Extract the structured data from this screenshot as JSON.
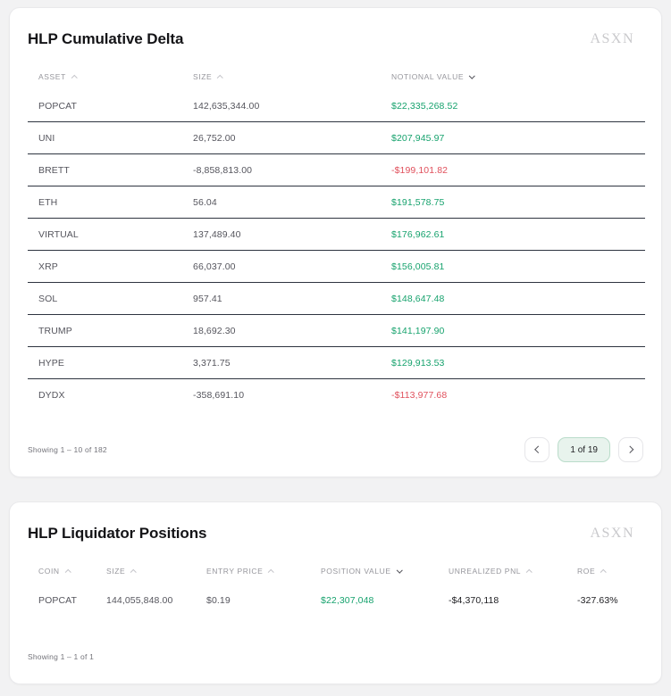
{
  "colors": {
    "positive": "#16a26d",
    "negative": "#e0505c",
    "row_divider": "#2e3440",
    "page_pill_bg": "#e8f3ed",
    "page_pill_border": "#badcca"
  },
  "cards": [
    {
      "title": "HLP Cumulative Delta",
      "logo": "ASXN",
      "columns": [
        {
          "label": "ASSET",
          "sort_dir": "up",
          "sort_active": false
        },
        {
          "label": "SIZE",
          "sort_dir": "up",
          "sort_active": false
        },
        {
          "label": "NOTIONAL VALUE",
          "sort_dir": "down",
          "sort_active": true
        }
      ],
      "rows": [
        {
          "cells": [
            {
              "text": "POPCAT",
              "tone": "muted"
            },
            {
              "text": "142,635,344.00",
              "tone": "muted"
            },
            {
              "text": "$22,335,268.52",
              "tone": "pos"
            }
          ]
        },
        {
          "cells": [
            {
              "text": "UNI",
              "tone": "muted"
            },
            {
              "text": "26,752.00",
              "tone": "muted"
            },
            {
              "text": "$207,945.97",
              "tone": "pos"
            }
          ]
        },
        {
          "cells": [
            {
              "text": "BRETT",
              "tone": "muted"
            },
            {
              "text": "-8,858,813.00",
              "tone": "muted"
            },
            {
              "text": "-$199,101.82",
              "tone": "neg"
            }
          ]
        },
        {
          "cells": [
            {
              "text": "ETH",
              "tone": "muted"
            },
            {
              "text": "56.04",
              "tone": "muted"
            },
            {
              "text": "$191,578.75",
              "tone": "pos"
            }
          ]
        },
        {
          "cells": [
            {
              "text": "VIRTUAL",
              "tone": "muted"
            },
            {
              "text": "137,489.40",
              "tone": "muted"
            },
            {
              "text": "$176,962.61",
              "tone": "pos"
            }
          ]
        },
        {
          "cells": [
            {
              "text": "XRP",
              "tone": "muted"
            },
            {
              "text": "66,037.00",
              "tone": "muted"
            },
            {
              "text": "$156,005.81",
              "tone": "pos"
            }
          ]
        },
        {
          "cells": [
            {
              "text": "SOL",
              "tone": "muted"
            },
            {
              "text": "957.41",
              "tone": "muted"
            },
            {
              "text": "$148,647.48",
              "tone": "pos"
            }
          ]
        },
        {
          "cells": [
            {
              "text": "TRUMP",
              "tone": "muted"
            },
            {
              "text": "18,692.30",
              "tone": "muted"
            },
            {
              "text": "$141,197.90",
              "tone": "pos"
            }
          ]
        },
        {
          "cells": [
            {
              "text": "HYPE",
              "tone": "muted"
            },
            {
              "text": "3,371.75",
              "tone": "muted"
            },
            {
              "text": "$129,913.53",
              "tone": "pos"
            }
          ]
        },
        {
          "cells": [
            {
              "text": "DYDX",
              "tone": "muted"
            },
            {
              "text": "-358,691.10",
              "tone": "muted"
            },
            {
              "text": "-$113,977.68",
              "tone": "neg"
            }
          ]
        }
      ],
      "footer": {
        "showing": "Showing 1 – 10 of 182",
        "page": "1 of 19"
      }
    },
    {
      "title": "HLP Liquidator Positions",
      "logo": "ASXN",
      "columns": [
        {
          "label": "COIN",
          "sort_dir": "up",
          "sort_active": false
        },
        {
          "label": "SIZE",
          "sort_dir": "up",
          "sort_active": false
        },
        {
          "label": "ENTRY PRICE",
          "sort_dir": "up",
          "sort_active": false
        },
        {
          "label": "POSITION VALUE",
          "sort_dir": "down",
          "sort_active": true
        },
        {
          "label": "UNREALIZED PNL",
          "sort_dir": "up",
          "sort_active": false
        },
        {
          "label": "ROE",
          "sort_dir": "up",
          "sort_active": false
        }
      ],
      "rows": [
        {
          "cells": [
            {
              "text": "POPCAT",
              "tone": "muted"
            },
            {
              "text": "144,055,848.00",
              "tone": "muted"
            },
            {
              "text": "$0.19",
              "tone": "muted"
            },
            {
              "text": "$22,307,048",
              "tone": "pos"
            },
            {
              "text": "-$4,370,118",
              "tone": "dark"
            },
            {
              "text": "-327.63%",
              "tone": "dark"
            }
          ]
        }
      ],
      "footer": {
        "showing": "Showing 1 – 1 of 1"
      }
    }
  ]
}
